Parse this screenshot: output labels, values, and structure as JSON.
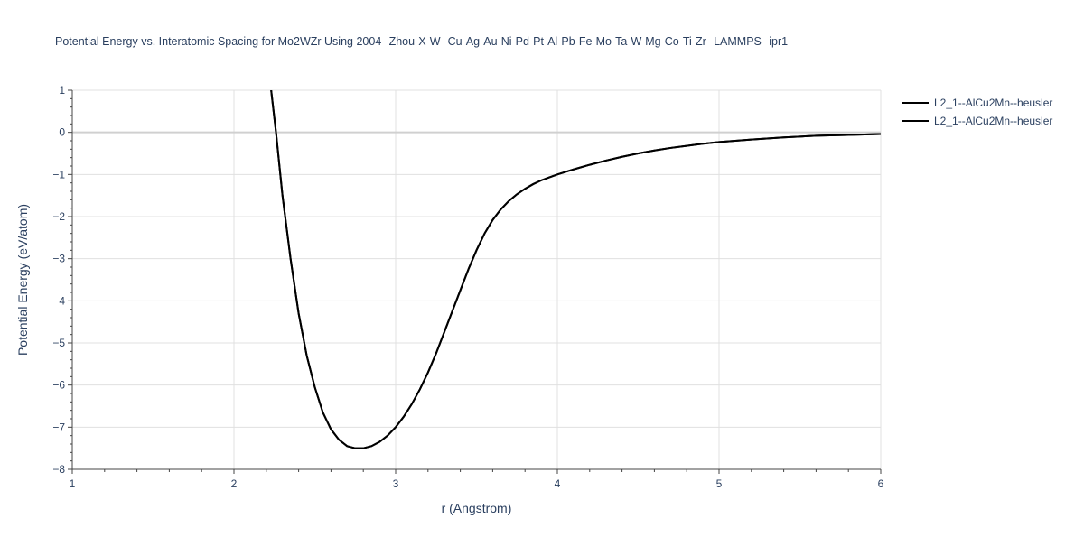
{
  "chart_data": {
    "type": "line",
    "title": "Potential Energy vs. Interatomic Spacing for Mo2WZr Using 2004--Zhou-X-W--Cu-Ag-Au-Ni-Pd-Pt-Al-Pb-Fe-Mo-Ta-W-Mg-Co-Ti-Zr--LAMMPS--ipr1",
    "xlabel": "r (Angstrom)",
    "ylabel": "Potential Energy (eV/atom)",
    "xlim": [
      1,
      6
    ],
    "ylim": [
      -8,
      1
    ],
    "x_ticks": [
      1,
      2,
      3,
      4,
      5,
      6
    ],
    "y_ticks": [
      1,
      0,
      -1,
      -2,
      -3,
      -4,
      -5,
      -6,
      -7,
      -8
    ],
    "x_tick_labels": [
      "1",
      "2",
      "3",
      "4",
      "5",
      "6"
    ],
    "y_tick_labels": [
      "1",
      "0",
      "−1",
      "−2",
      "−3",
      "−4",
      "−5",
      "−6",
      "−7",
      "−8"
    ],
    "grid": true,
    "legend_position": "top-right",
    "line_color": "#000000",
    "series": [
      {
        "name": "L2_1--AlCu2Mn--heusler",
        "x": [
          2.23,
          2.26,
          2.3,
          2.35,
          2.4,
          2.45,
          2.5,
          2.55,
          2.6,
          2.65,
          2.7,
          2.75,
          2.8,
          2.85,
          2.9,
          2.95,
          3.0,
          3.05,
          3.1,
          3.15,
          3.2,
          3.25,
          3.3,
          3.35,
          3.4,
          3.45,
          3.5,
          3.55,
          3.6,
          3.65,
          3.7,
          3.75,
          3.8,
          3.85,
          3.9,
          3.95,
          4.0,
          4.1,
          4.2,
          4.3,
          4.4,
          4.5,
          4.6,
          4.7,
          4.8,
          4.9,
          5.0,
          5.2,
          5.4,
          5.6,
          5.8,
          6.0
        ],
        "y": [
          1.0,
          0.0,
          -1.5,
          -3.0,
          -4.3,
          -5.3,
          -6.05,
          -6.65,
          -7.05,
          -7.3,
          -7.45,
          -7.5,
          -7.5,
          -7.45,
          -7.35,
          -7.2,
          -7.0,
          -6.75,
          -6.45,
          -6.1,
          -5.7,
          -5.25,
          -4.75,
          -4.25,
          -3.75,
          -3.25,
          -2.8,
          -2.4,
          -2.08,
          -1.83,
          -1.63,
          -1.47,
          -1.34,
          -1.23,
          -1.14,
          -1.07,
          -1.0,
          -0.88,
          -0.77,
          -0.67,
          -0.58,
          -0.5,
          -0.43,
          -0.37,
          -0.32,
          -0.27,
          -0.23,
          -0.17,
          -0.12,
          -0.08,
          -0.06,
          -0.04
        ]
      },
      {
        "name": "L2_1--AlCu2Mn--heusler",
        "x": [
          2.23,
          2.26,
          2.3,
          2.35,
          2.4,
          2.45,
          2.5,
          2.55,
          2.6,
          2.65,
          2.7,
          2.75,
          2.8,
          2.85,
          2.9,
          2.95,
          3.0,
          3.05,
          3.1,
          3.15,
          3.2,
          3.25,
          3.3,
          3.35,
          3.4,
          3.45,
          3.5,
          3.55,
          3.6,
          3.65,
          3.7,
          3.75,
          3.8,
          3.85,
          3.9,
          3.95,
          4.0,
          4.1,
          4.2,
          4.3,
          4.4,
          4.5,
          4.6,
          4.7,
          4.8,
          4.9,
          5.0,
          5.2,
          5.4,
          5.6,
          5.8,
          6.0
        ],
        "y": [
          1.0,
          0.0,
          -1.5,
          -3.0,
          -4.3,
          -5.3,
          -6.05,
          -6.65,
          -7.05,
          -7.3,
          -7.45,
          -7.5,
          -7.5,
          -7.45,
          -7.35,
          -7.2,
          -7.0,
          -6.75,
          -6.45,
          -6.1,
          -5.7,
          -5.25,
          -4.75,
          -4.25,
          -3.75,
          -3.25,
          -2.8,
          -2.4,
          -2.08,
          -1.83,
          -1.63,
          -1.47,
          -1.34,
          -1.23,
          -1.14,
          -1.07,
          -1.0,
          -0.88,
          -0.77,
          -0.67,
          -0.58,
          -0.5,
          -0.43,
          -0.37,
          -0.32,
          -0.27,
          -0.23,
          -0.17,
          -0.12,
          -0.08,
          -0.06,
          -0.04
        ]
      }
    ]
  }
}
